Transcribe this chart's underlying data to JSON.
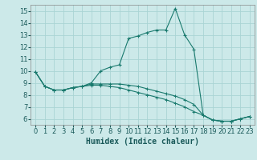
{
  "xlabel": "Humidex (Indice chaleur)",
  "background_color": "#cce9e9",
  "grid_color": "#aad4d4",
  "line_color": "#1a7a6e",
  "line1_x": [
    0,
    1,
    2,
    3,
    4,
    5,
    6,
    7,
    8,
    9,
    10,
    11,
    12,
    13,
    14,
    15,
    16,
    17,
    18,
    19,
    20,
    21,
    22,
    23
  ],
  "line1_y": [
    9.9,
    8.7,
    8.4,
    8.4,
    8.6,
    8.7,
    9.0,
    10.0,
    10.3,
    10.5,
    12.7,
    12.9,
    13.2,
    13.4,
    13.4,
    15.2,
    13.0,
    11.8,
    6.3,
    5.9,
    5.8,
    5.8,
    6.0,
    6.2
  ],
  "line2_x": [
    0,
    1,
    2,
    3,
    4,
    5,
    6,
    7,
    8,
    9,
    10,
    11,
    12,
    13,
    14,
    15,
    16,
    17,
    18,
    19,
    20,
    21,
    22,
    23
  ],
  "line2_y": [
    9.9,
    8.7,
    8.4,
    8.4,
    8.6,
    8.7,
    8.9,
    8.9,
    8.9,
    8.9,
    8.8,
    8.7,
    8.5,
    8.3,
    8.1,
    7.9,
    7.6,
    7.2,
    6.3,
    5.9,
    5.8,
    5.8,
    6.0,
    6.2
  ],
  "line3_x": [
    0,
    1,
    2,
    3,
    4,
    5,
    6,
    7,
    8,
    9,
    10,
    11,
    12,
    13,
    14,
    15,
    16,
    17,
    18,
    19,
    20,
    21,
    22,
    23
  ],
  "line3_y": [
    9.9,
    8.7,
    8.4,
    8.4,
    8.6,
    8.7,
    8.8,
    8.8,
    8.7,
    8.6,
    8.4,
    8.2,
    8.0,
    7.8,
    7.6,
    7.3,
    7.0,
    6.6,
    6.3,
    5.9,
    5.8,
    5.8,
    6.0,
    6.2
  ],
  "ylim": [
    5.5,
    15.5
  ],
  "xlim": [
    -0.5,
    23.5
  ],
  "yticks": [
    6,
    7,
    8,
    9,
    10,
    11,
    12,
    13,
    14,
    15
  ],
  "xticks": [
    0,
    1,
    2,
    3,
    4,
    5,
    6,
    7,
    8,
    9,
    10,
    11,
    12,
    13,
    14,
    15,
    16,
    17,
    18,
    19,
    20,
    21,
    22,
    23
  ],
  "tick_fontsize": 6,
  "xlabel_fontsize": 7
}
